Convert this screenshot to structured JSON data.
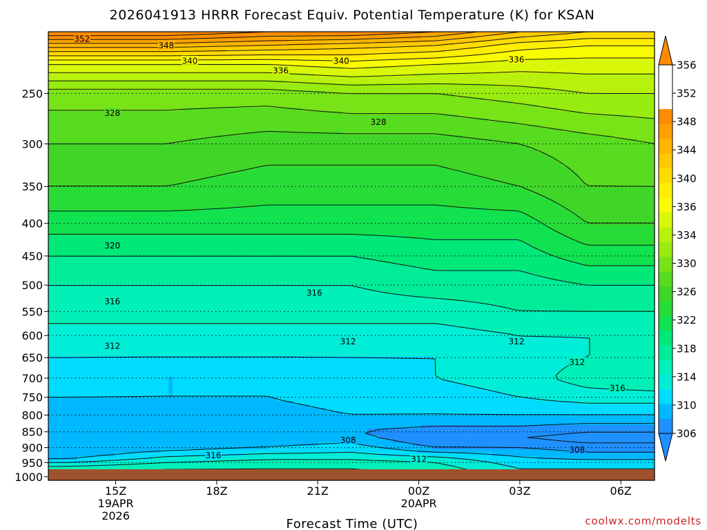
{
  "chart_data": {
    "type": "heatmap",
    "title": "2026041913 HRRR Forecast Equiv. Potential Temperature (K) for KSAN",
    "xlabel": "Forecast Time (UTC)",
    "ylabel": "",
    "credit": "coolwx.com/modelts",
    "x_ticks": [
      {
        "value": 15,
        "lines": [
          "15Z",
          "19APR",
          "2026"
        ]
      },
      {
        "value": 18,
        "lines": [
          "18Z"
        ]
      },
      {
        "value": 21,
        "lines": [
          "21Z"
        ]
      },
      {
        "value": 24,
        "lines": [
          "00Z",
          "20APR"
        ]
      },
      {
        "value": 27,
        "lines": [
          "03Z"
        ]
      },
      {
        "value": 30,
        "lines": [
          "06Z"
        ]
      }
    ],
    "xlim": [
      13,
      31
    ],
    "y_axis": "pressure_log_inverted",
    "y_unit": "hPa",
    "ylim": [
      1013,
      200
    ],
    "y_ticks": [
      250,
      300,
      350,
      400,
      450,
      500,
      550,
      600,
      650,
      700,
      750,
      800,
      850,
      900,
      950,
      1000
    ],
    "grid": "dotted at each pressure tick",
    "surface_color": "#a0522d",
    "colorbar": {
      "position": "right",
      "levels": [
        306,
        310,
        314,
        318,
        322,
        326,
        330,
        334,
        336,
        340,
        344,
        348,
        352,
        356
      ],
      "bounds": [
        306,
        308,
        310,
        312,
        314,
        316,
        318,
        320,
        322,
        324,
        326,
        328,
        330,
        332,
        334,
        336,
        338,
        340,
        342,
        344,
        346,
        348,
        350,
        352,
        354,
        356
      ],
      "colors": [
        "#1e90ff",
        "#00b8ff",
        "#00dcff",
        "#00eed8",
        "#00f0b8",
        "#00ec98",
        "#00e878",
        "#10e250",
        "#28dc38",
        "#40d628",
        "#58dc20",
        "#78e418",
        "#98ec10",
        "#b8f20c",
        "#d8f808",
        "#f8fc00",
        "#ffee00",
        "#ffdc00",
        "#ffc800",
        "#ffb400",
        "#ffa000",
        "#ff8c00"
      ]
    },
    "theta_e_profiles": [
      {
        "time": 13.5,
        "p": [
          1000,
          970,
          950,
          930,
          900,
          870,
          850,
          800,
          750,
          700,
          650,
          600,
          550,
          500,
          450,
          400,
          350,
          300,
          250,
          225,
          210,
          200
        ],
        "theta": [
          316,
          315,
          312,
          309,
          308,
          308,
          309,
          309,
          310,
          311,
          312,
          313,
          315,
          316,
          318,
          321,
          324,
          326,
          329,
          336,
          345,
          352
        ]
      },
      {
        "time": 16.5,
        "p": [
          1000,
          970,
          950,
          930,
          900,
          870,
          850,
          800,
          750,
          700,
          650,
          600,
          550,
          500,
          450,
          400,
          350,
          300,
          250,
          225,
          210,
          200
        ],
        "theta": [
          317,
          316,
          314,
          312,
          309,
          308,
          308,
          309,
          310,
          310,
          312,
          313,
          315,
          316,
          318,
          321,
          324,
          326,
          329,
          336,
          345,
          352
        ]
      },
      {
        "time": 19.5,
        "p": [
          1000,
          970,
          950,
          930,
          900,
          870,
          850,
          800,
          750,
          700,
          650,
          600,
          550,
          500,
          450,
          400,
          350,
          300,
          250,
          225,
          210,
          200
        ],
        "theta": [
          317,
          316,
          315,
          313,
          310,
          309,
          308,
          309,
          310,
          310,
          312,
          313,
          315,
          316,
          318,
          321,
          323,
          325,
          329,
          336,
          344,
          350
        ]
      },
      {
        "time": 22.0,
        "p": [
          1000,
          970,
          950,
          930,
          900,
          870,
          850,
          800,
          750,
          700,
          650,
          600,
          550,
          500,
          450,
          400,
          350,
          300,
          250,
          225,
          210,
          200
        ],
        "theta": [
          317,
          316,
          315,
          313,
          311,
          309,
          308,
          310,
          311,
          311,
          312,
          313,
          315,
          316,
          318,
          321,
          323,
          325,
          330,
          337,
          343,
          350
        ]
      },
      {
        "time": 24.5,
        "p": [
          1000,
          970,
          950,
          930,
          900,
          870,
          850,
          800,
          750,
          700,
          650,
          600,
          550,
          500,
          450,
          400,
          350,
          300,
          250,
          225,
          210,
          200
        ],
        "theta": [
          316,
          315,
          314,
          312,
          308,
          306,
          307,
          310,
          311,
          312,
          312,
          313,
          315,
          317,
          319,
          321,
          323,
          325,
          330,
          336,
          342,
          348
        ]
      },
      {
        "time": 27.0,
        "p": [
          1000,
          970,
          950,
          930,
          900,
          870,
          850,
          800,
          750,
          700,
          650,
          600,
          550,
          500,
          450,
          400,
          350,
          300,
          250,
          225,
          210,
          200
        ],
        "theta": [
          313,
          312,
          311,
          310,
          308,
          306,
          307,
          310,
          312,
          313,
          313,
          314,
          316,
          317,
          319,
          321,
          324,
          326,
          331,
          335,
          339,
          344
        ]
      },
      {
        "time": 29.0,
        "p": [
          1000,
          970,
          950,
          930,
          900,
          870,
          850,
          800,
          750,
          700,
          650,
          600,
          550,
          500,
          450,
          400,
          350,
          300,
          250,
          225,
          210,
          200
        ],
        "theta": [
          313,
          312,
          311,
          309,
          307,
          305,
          306,
          310,
          313,
          315,
          314,
          314,
          316,
          318,
          321,
          324,
          326,
          327,
          332,
          335,
          338,
          342
        ]
      },
      {
        "time": 31.0,
        "p": [
          1000,
          970,
          950,
          930,
          900,
          870,
          850,
          800,
          750,
          700,
          650,
          600,
          550,
          500,
          450,
          400,
          350,
          300,
          250,
          225,
          210,
          200
        ],
        "theta": [
          313,
          312,
          311,
          309,
          307,
          305,
          306,
          310,
          313,
          316,
          314,
          314,
          316,
          318,
          321,
          324,
          326,
          328,
          332,
          335,
          338,
          342
        ]
      }
    ],
    "contour_labels": [
      {
        "text": "352",
        "time": 14.0,
        "p": 205
      },
      {
        "text": "348",
        "time": 16.5,
        "p": 210
      },
      {
        "text": "340",
        "time": 17.2,
        "p": 222
      },
      {
        "text": "336",
        "time": 19.9,
        "p": 230
      },
      {
        "text": "340",
        "time": 21.7,
        "p": 222
      },
      {
        "text": "336",
        "time": 26.9,
        "p": 221
      },
      {
        "text": "328",
        "time": 14.9,
        "p": 268
      },
      {
        "text": "328",
        "time": 22.8,
        "p": 277
      },
      {
        "text": "320",
        "time": 14.9,
        "p": 433
      },
      {
        "text": "316",
        "time": 14.9,
        "p": 530
      },
      {
        "text": "316",
        "time": 20.9,
        "p": 514
      },
      {
        "text": "312",
        "time": 14.9,
        "p": 623
      },
      {
        "text": "312",
        "time": 21.9,
        "p": 613
      },
      {
        "text": "312",
        "time": 26.9,
        "p": 613
      },
      {
        "text": "312",
        "time": 28.7,
        "p": 660
      },
      {
        "text": "316",
        "time": 29.9,
        "p": 725
      },
      {
        "text": "308",
        "time": 21.9,
        "p": 875
      },
      {
        "text": "308",
        "time": 28.7,
        "p": 906
      },
      {
        "text": "312",
        "time": 24.0,
        "p": 938
      },
      {
        "text": "316",
        "time": 17.9,
        "p": 925
      }
    ]
  }
}
